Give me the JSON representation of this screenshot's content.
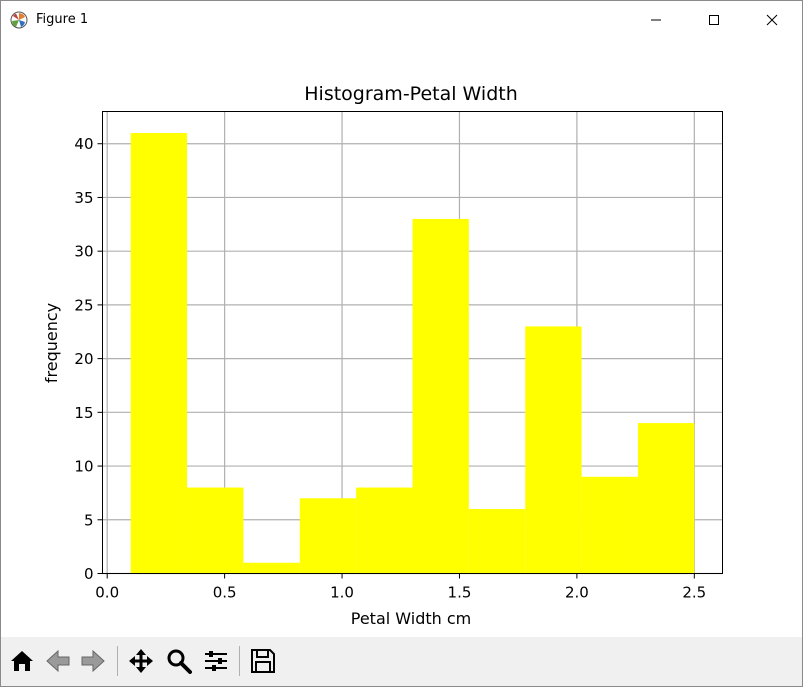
{
  "window": {
    "title": "Figure 1"
  },
  "chart_data": {
    "type": "bar",
    "title": "Histogram-Petal Width",
    "xlabel": "Petal Width cm",
    "ylabel": "frequency",
    "bin_edges": [
      0.1,
      0.34,
      0.58,
      0.82,
      1.06,
      1.3,
      1.54,
      1.78,
      2.02,
      2.26,
      2.5
    ],
    "values": [
      41,
      8,
      1,
      7,
      8,
      33,
      6,
      23,
      9,
      14
    ],
    "xlim": [
      -0.02,
      2.62
    ],
    "ylim": [
      0,
      43
    ],
    "xticks": [
      0.0,
      0.5,
      1.0,
      1.5,
      2.0,
      2.5
    ],
    "xtick_labels": [
      "0.0",
      "0.5",
      "1.0",
      "1.5",
      "2.0",
      "2.5"
    ],
    "yticks": [
      0,
      5,
      10,
      15,
      20,
      25,
      30,
      35,
      40
    ],
    "ytick_labels": [
      "0",
      "5",
      "10",
      "15",
      "20",
      "25",
      "30",
      "35",
      "40"
    ],
    "bar_color": "#ffff00",
    "grid": true
  },
  "toolbar": {
    "buttons": [
      "home-icon",
      "back-arrow-icon",
      "forward-arrow-icon",
      "pan-icon",
      "zoom-icon",
      "subplots-icon",
      "save-icon"
    ]
  }
}
